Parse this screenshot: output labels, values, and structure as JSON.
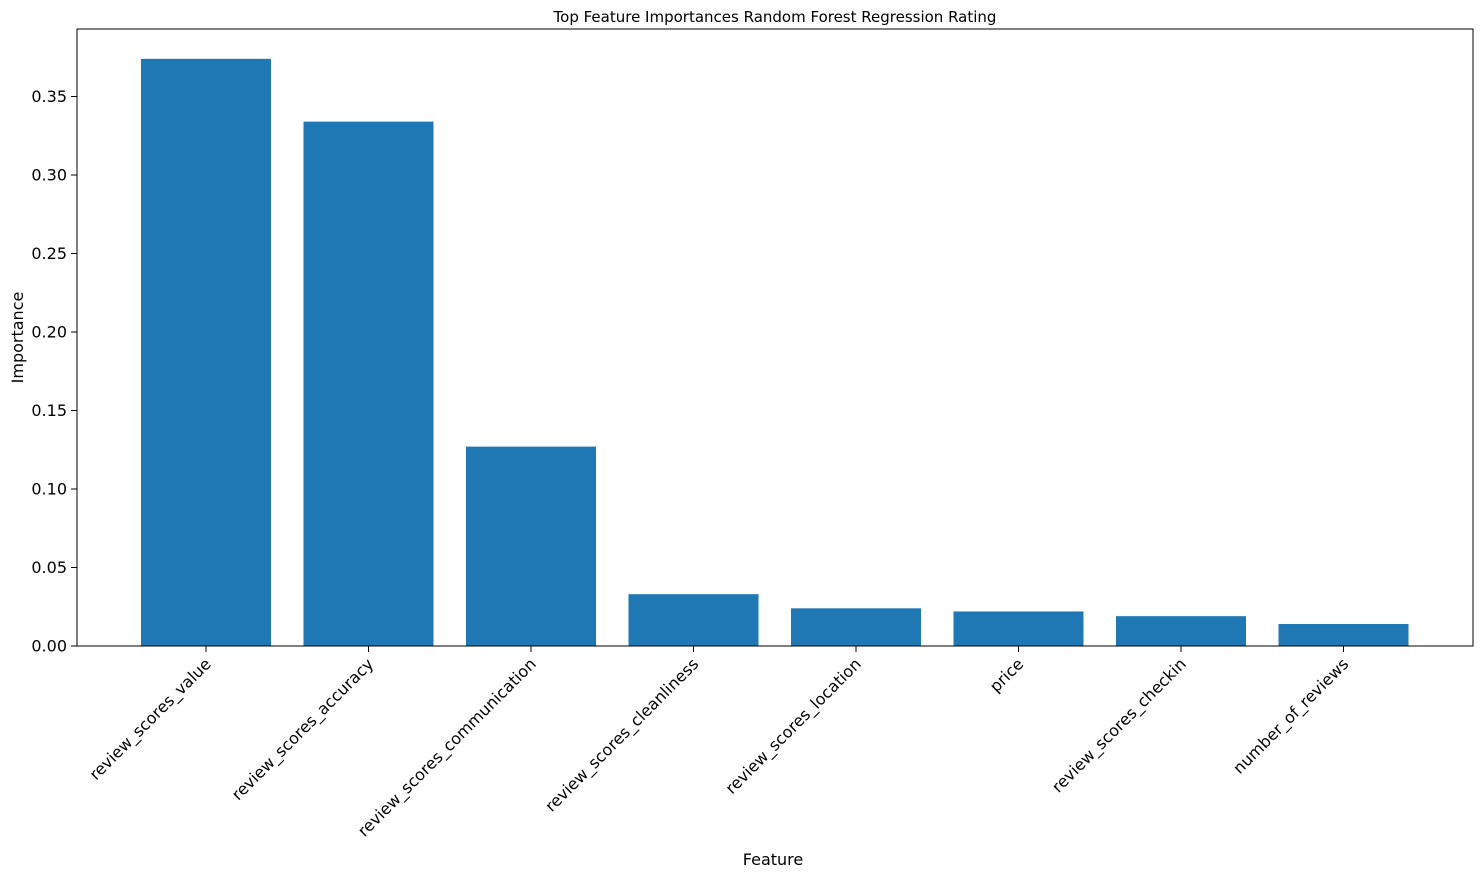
{
  "chart_data": {
    "type": "bar",
    "title": "Top Feature Importances Random Forest Regression Rating",
    "xlabel": "Feature",
    "ylabel": "Importance",
    "categories": [
      "review_scores_value",
      "review_scores_accuracy",
      "review_scores_communication",
      "review_scores_cleanliness",
      "review_scores_location",
      "price",
      "review_scores_checkin",
      "number_of_reviews"
    ],
    "values": [
      0.374,
      0.334,
      0.127,
      0.033,
      0.024,
      0.022,
      0.019,
      0.014
    ],
    "ylim": [
      0,
      0.393
    ],
    "yticks": [
      0.0,
      0.05,
      0.1,
      0.15,
      0.2,
      0.25,
      0.3,
      0.35
    ],
    "ytick_labels": [
      "0.00",
      "0.05",
      "0.10",
      "0.15",
      "0.20",
      "0.25",
      "0.30",
      "0.35"
    ],
    "bar_color": "#1f77b4",
    "grid": false,
    "xtick_rotation_deg": 45
  }
}
